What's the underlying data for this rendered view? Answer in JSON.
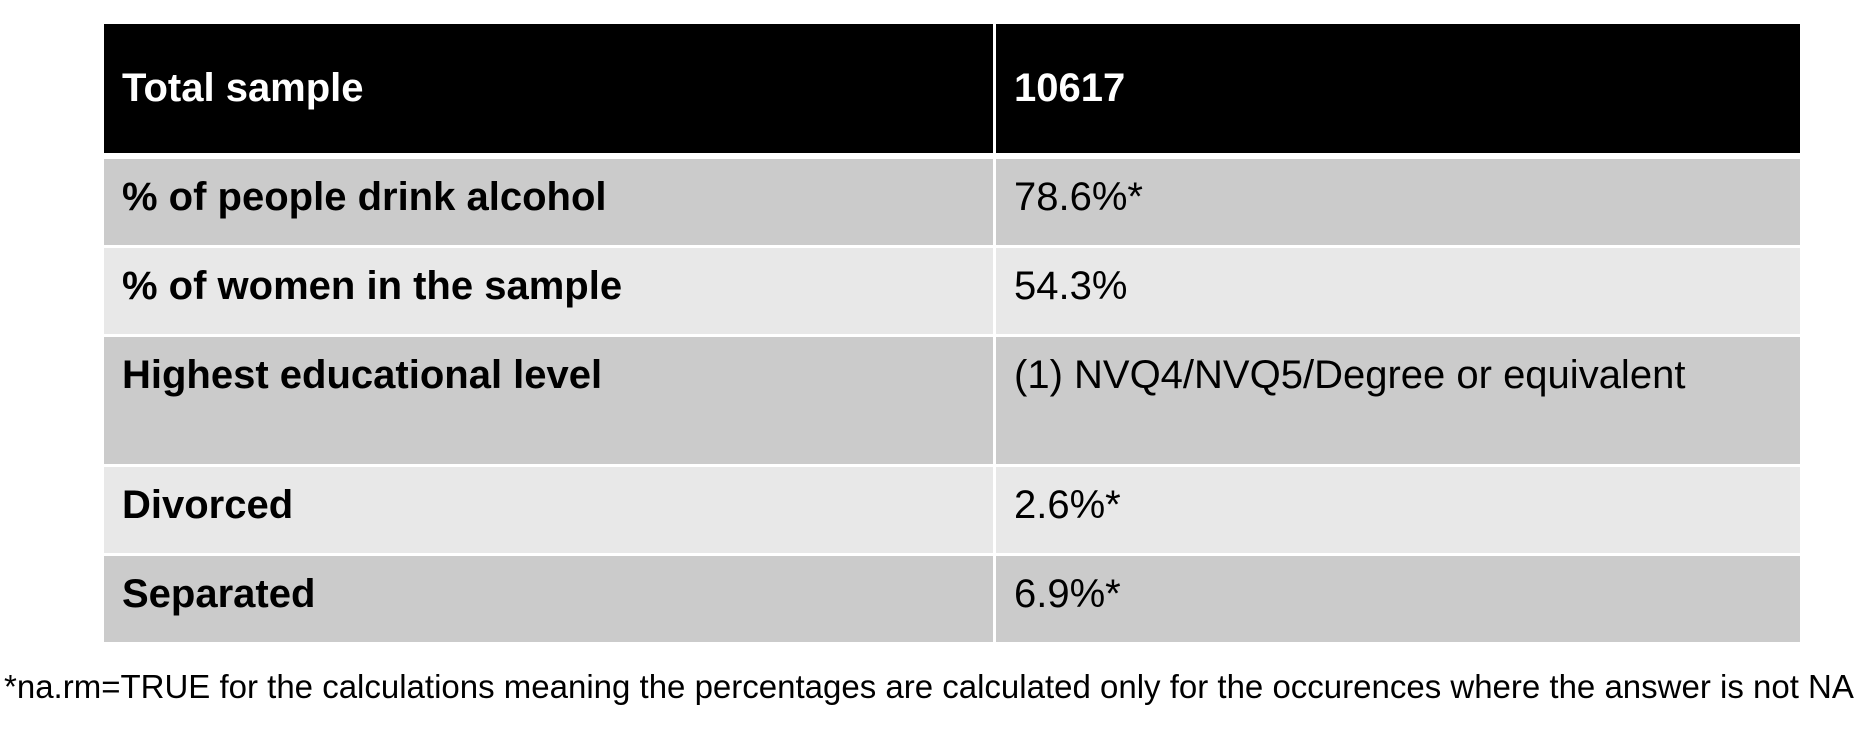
{
  "table": {
    "header": {
      "label": "Total sample",
      "value": "10617"
    },
    "rows": [
      {
        "label": "% of people drink alcohol",
        "value": "78.6%*"
      },
      {
        "label": "% of women in the sample",
        "value": "54.3%"
      },
      {
        "label": "Highest educational level",
        "value": "(1) NVQ4/NVQ5/Degree or equivalent"
      },
      {
        "label": "Divorced",
        "value": "2.6%*"
      },
      {
        "label": "Separated",
        "value": "6.9%*"
      }
    ]
  },
  "footnote": "*na.rm=TRUE for the calculations meaning the percentages are calculated only for the occurences where the answer is not NA"
}
